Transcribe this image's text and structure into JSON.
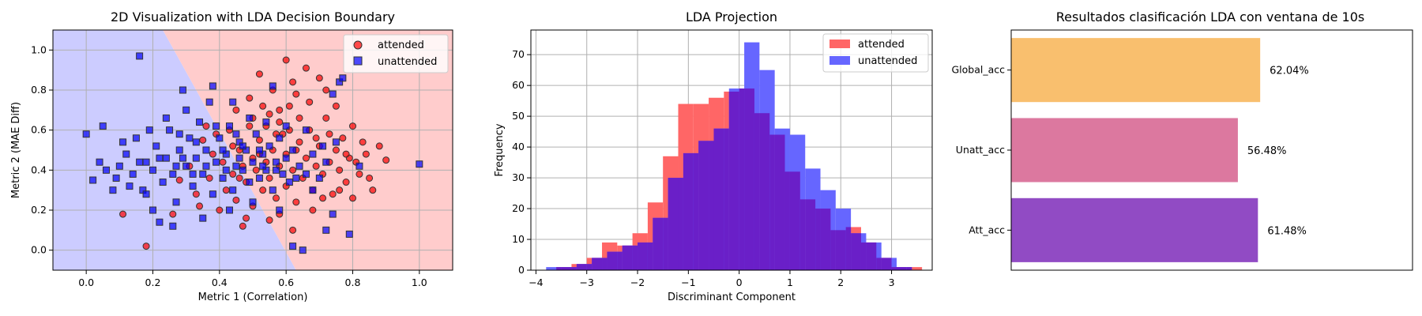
{
  "chart_data": [
    {
      "type": "scatter",
      "title": "2D Visualization with LDA Decision Boundary",
      "xlabel": "Metric 1 (Correlation)",
      "ylabel": "Metric 2 (MAE Diff)",
      "xlim": [
        -0.1,
        1.1
      ],
      "ylim": [
        -0.1,
        1.1
      ],
      "xticks": [
        "0.0",
        "0.2",
        "0.4",
        "0.6",
        "0.8",
        "1.0"
      ],
      "yticks": [
        "0.0",
        "0.2",
        "0.4",
        "0.6",
        "0.8",
        "1.0"
      ],
      "grid": true,
      "legend_position": "top-right",
      "boundary": {
        "line": [
          [
            0.23,
            1.1
          ],
          [
            0.63,
            -0.1
          ]
        ],
        "left_region_color": "#ccccff",
        "right_region_color": "#ffcccc"
      },
      "series": [
        {
          "name": "attended",
          "marker": "circle",
          "color": "#ff0000",
          "points": [
            [
              0.18,
              0.02
            ],
            [
              0.26,
              0.18
            ],
            [
              0.11,
              0.18
            ],
            [
              0.28,
              0.35
            ],
            [
              0.31,
              0.42
            ],
            [
              0.33,
              0.28
            ],
            [
              0.35,
              0.55
            ],
            [
              0.37,
              0.36
            ],
            [
              0.38,
              0.48
            ],
            [
              0.4,
              0.2
            ],
            [
              0.41,
              0.44
            ],
            [
              0.42,
              0.3
            ],
            [
              0.43,
              0.6
            ],
            [
              0.44,
              0.38
            ],
            [
              0.45,
              0.25
            ],
            [
              0.46,
              0.5
            ],
            [
              0.47,
              0.42
            ],
            [
              0.48,
              0.34
            ],
            [
              0.49,
              0.62
            ],
            [
              0.5,
              0.46
            ],
            [
              0.5,
              0.22
            ],
            [
              0.51,
              0.4
            ],
            [
              0.52,
              0.55
            ],
            [
              0.53,
              0.3
            ],
            [
              0.54,
              0.44
            ],
            [
              0.55,
              0.68
            ],
            [
              0.55,
              0.36
            ],
            [
              0.56,
              0.5
            ],
            [
              0.57,
              0.26
            ],
            [
              0.58,
              0.42
            ],
            [
              0.59,
              0.58
            ],
            [
              0.6,
              0.32
            ],
            [
              0.6,
              0.48
            ],
            [
              0.61,
              0.72
            ],
            [
              0.62,
              0.4
            ],
            [
              0.63,
              0.24
            ],
            [
              0.64,
              0.54
            ],
            [
              0.65,
              0.36
            ],
            [
              0.66,
              0.46
            ],
            [
              0.67,
              0.6
            ],
            [
              0.68,
              0.3
            ],
            [
              0.69,
              0.42
            ],
            [
              0.7,
              0.52
            ],
            [
              0.71,
              0.38
            ],
            [
              0.72,
              0.66
            ],
            [
              0.73,
              0.44
            ],
            [
              0.74,
              0.28
            ],
            [
              0.75,
              0.5
            ],
            [
              0.76,
              0.4
            ],
            [
              0.77,
              0.56
            ],
            [
              0.78,
              0.34
            ],
            [
              0.79,
              0.46
            ],
            [
              0.8,
              0.62
            ],
            [
              0.82,
              0.38
            ],
            [
              0.84,
              0.48
            ],
            [
              0.86,
              0.3
            ],
            [
              0.88,
              0.52
            ],
            [
              0.9,
              0.45
            ],
            [
              0.52,
              0.88
            ],
            [
              0.6,
              0.95
            ],
            [
              0.66,
              0.91
            ],
            [
              0.7,
              0.86
            ],
            [
              0.56,
              0.8
            ],
            [
              0.63,
              0.78
            ],
            [
              0.72,
              0.8
            ],
            [
              0.49,
              0.76
            ],
            [
              0.67,
              0.74
            ],
            [
              0.75,
              0.72
            ],
            [
              0.47,
              0.12
            ],
            [
              0.55,
              0.15
            ],
            [
              0.62,
              0.1
            ],
            [
              0.58,
              0.18
            ],
            [
              0.68,
              0.2
            ],
            [
              0.5,
              0.66
            ],
            [
              0.58,
              0.64
            ],
            [
              0.64,
              0.66
            ],
            [
              0.45,
              0.7
            ],
            [
              0.53,
              0.72
            ],
            [
              0.61,
              0.6
            ],
            [
              0.69,
              0.56
            ],
            [
              0.44,
              0.52
            ],
            [
              0.52,
              0.48
            ],
            [
              0.57,
              0.58
            ],
            [
              0.63,
              0.5
            ],
            [
              0.73,
              0.58
            ],
            [
              0.78,
              0.48
            ],
            [
              0.81,
              0.44
            ],
            [
              0.36,
              0.62
            ],
            [
              0.34,
              0.22
            ],
            [
              0.39,
              0.58
            ],
            [
              0.48,
              0.16
            ],
            [
              0.71,
              0.26
            ],
            [
              0.76,
              0.3
            ],
            [
              0.8,
              0.26
            ],
            [
              0.83,
              0.54
            ],
            [
              0.85,
              0.36
            ],
            [
              0.62,
              0.84
            ],
            [
              0.58,
              0.7
            ],
            [
              0.54,
              0.62
            ],
            [
              0.46,
              0.36
            ]
          ]
        },
        {
          "name": "unattended",
          "marker": "square",
          "color": "#0000ff",
          "points": [
            [
              0.0,
              0.58
            ],
            [
              0.02,
              0.35
            ],
            [
              0.04,
              0.44
            ],
            [
              0.05,
              0.62
            ],
            [
              0.06,
              0.4
            ],
            [
              0.08,
              0.3
            ],
            [
              0.1,
              0.42
            ],
            [
              0.12,
              0.48
            ],
            [
              0.14,
              0.38
            ],
            [
              0.15,
              0.56
            ],
            [
              0.16,
              0.97
            ],
            [
              0.17,
              0.3
            ],
            [
              0.18,
              0.44
            ],
            [
              0.2,
              0.4
            ],
            [
              0.21,
              0.52
            ],
            [
              0.22,
              0.14
            ],
            [
              0.23,
              0.34
            ],
            [
              0.24,
              0.46
            ],
            [
              0.25,
              0.6
            ],
            [
              0.26,
              0.38
            ],
            [
              0.27,
              0.24
            ],
            [
              0.28,
              0.5
            ],
            [
              0.29,
              0.8
            ],
            [
              0.3,
              0.42
            ],
            [
              0.31,
              0.56
            ],
            [
              0.32,
              0.32
            ],
            [
              0.33,
              0.46
            ],
            [
              0.34,
              0.64
            ],
            [
              0.35,
              0.38
            ],
            [
              0.36,
              0.5
            ],
            [
              0.37,
              0.74
            ],
            [
              0.38,
              0.28
            ],
            [
              0.39,
              0.44
            ],
            [
              0.4,
              0.56
            ],
            [
              0.41,
              0.36
            ],
            [
              0.42,
              0.48
            ],
            [
              0.43,
              0.62
            ],
            [
              0.44,
              0.3
            ],
            [
              0.45,
              0.42
            ],
            [
              0.46,
              0.54
            ],
            [
              0.47,
              0.4
            ],
            [
              0.48,
              0.5
            ],
            [
              0.49,
              0.34
            ],
            [
              0.5,
              0.44
            ],
            [
              0.51,
              0.58
            ],
            [
              0.52,
              0.36
            ],
            [
              0.53,
              0.48
            ],
            [
              0.54,
              0.4
            ],
            [
              0.55,
              0.52
            ],
            [
              0.56,
              0.3
            ],
            [
              0.57,
              0.44
            ],
            [
              0.58,
              0.56
            ],
            [
              0.59,
              0.38
            ],
            [
              0.6,
              0.46
            ],
            [
              0.61,
              0.34
            ],
            [
              0.62,
              0.5
            ],
            [
              0.64,
              0.42
            ],
            [
              0.66,
              0.38
            ],
            [
              0.68,
              0.48
            ],
            [
              0.7,
              0.36
            ],
            [
              0.72,
              0.44
            ],
            [
              0.75,
              0.54
            ],
            [
              0.62,
              0.02
            ],
            [
              0.65,
              0.0
            ],
            [
              0.72,
              0.1
            ],
            [
              0.74,
              0.18
            ],
            [
              0.76,
              0.84
            ],
            [
              0.77,
              0.86
            ],
            [
              0.79,
              0.08
            ],
            [
              0.82,
              0.42
            ],
            [
              1.0,
              0.43
            ],
            [
              0.74,
              0.78
            ],
            [
              0.56,
              0.82
            ],
            [
              0.44,
              0.74
            ],
            [
              0.38,
              0.82
            ],
            [
              0.3,
              0.7
            ],
            [
              0.24,
              0.66
            ],
            [
              0.2,
              0.2
            ],
            [
              0.26,
              0.12
            ],
            [
              0.35,
              0.16
            ],
            [
              0.43,
              0.2
            ],
            [
              0.5,
              0.24
            ],
            [
              0.58,
              0.2
            ],
            [
              0.18,
              0.28
            ],
            [
              0.13,
              0.32
            ],
            [
              0.09,
              0.36
            ],
            [
              0.11,
              0.54
            ],
            [
              0.19,
              0.6
            ],
            [
              0.28,
              0.58
            ],
            [
              0.33,
              0.54
            ],
            [
              0.41,
              0.5
            ],
            [
              0.46,
              0.46
            ],
            [
              0.53,
              0.42
            ],
            [
              0.57,
              0.4
            ],
            [
              0.63,
              0.36
            ],
            [
              0.68,
              0.3
            ],
            [
              0.71,
              0.52
            ],
            [
              0.66,
              0.6
            ],
            [
              0.6,
              0.62
            ],
            [
              0.54,
              0.64
            ],
            [
              0.49,
              0.66
            ],
            [
              0.39,
              0.62
            ],
            [
              0.29,
              0.46
            ],
            [
              0.22,
              0.46
            ],
            [
              0.16,
              0.44
            ],
            [
              0.36,
              0.42
            ],
            [
              0.42,
              0.4
            ],
            [
              0.47,
              0.52
            ],
            [
              0.52,
              0.5
            ],
            [
              0.45,
              0.58
            ],
            [
              0.32,
              0.38
            ],
            [
              0.27,
              0.42
            ]
          ]
        }
      ]
    },
    {
      "type": "histogram",
      "title": "LDA Projection",
      "xlabel": "Discriminant Component",
      "ylabel": "Frequency",
      "xlim": [
        -4.1,
        3.8
      ],
      "ylim": [
        0,
        78
      ],
      "xticks": [
        -4,
        -3,
        -2,
        -1,
        0,
        1,
        2,
        3
      ],
      "yticks": [
        0,
        10,
        20,
        30,
        40,
        50,
        60,
        70
      ],
      "grid": true,
      "legend_position": "top-right",
      "overlap_color": "#6a1fc8",
      "series": [
        {
          "name": "attended",
          "color": "#ff6666",
          "bin_start": -3.6,
          "bin_width": 0.3,
          "counts": [
            1,
            2,
            4,
            9,
            8,
            12,
            22,
            37,
            54,
            54,
            56,
            58,
            59,
            51,
            44,
            32,
            23,
            20,
            13,
            14,
            9,
            4,
            1,
            1
          ]
        },
        {
          "name": "unattended",
          "color": "#6666ff",
          "bin_start": -3.8,
          "bin_width": 0.3,
          "counts": [
            1,
            1,
            2,
            4,
            6,
            8,
            9,
            17,
            30,
            38,
            42,
            46,
            59,
            74,
            65,
            46,
            44,
            33,
            26,
            20,
            12,
            9,
            4,
            1
          ]
        }
      ]
    },
    {
      "type": "bar",
      "orientation": "horizontal",
      "title": "Resultados clasificación LDA con ventana de 10s",
      "categories": [
        "Global_acc",
        "Unatt_acc",
        "Att_acc"
      ],
      "values": [
        62.04,
        56.48,
        61.48
      ],
      "labels": [
        "62.04%",
        "56.48%",
        "61.48%"
      ],
      "colors": [
        "#f9bf6e",
        "#dc789f",
        "#914bc4"
      ],
      "xlim": [
        0,
        100
      ],
      "grid": false
    }
  ]
}
